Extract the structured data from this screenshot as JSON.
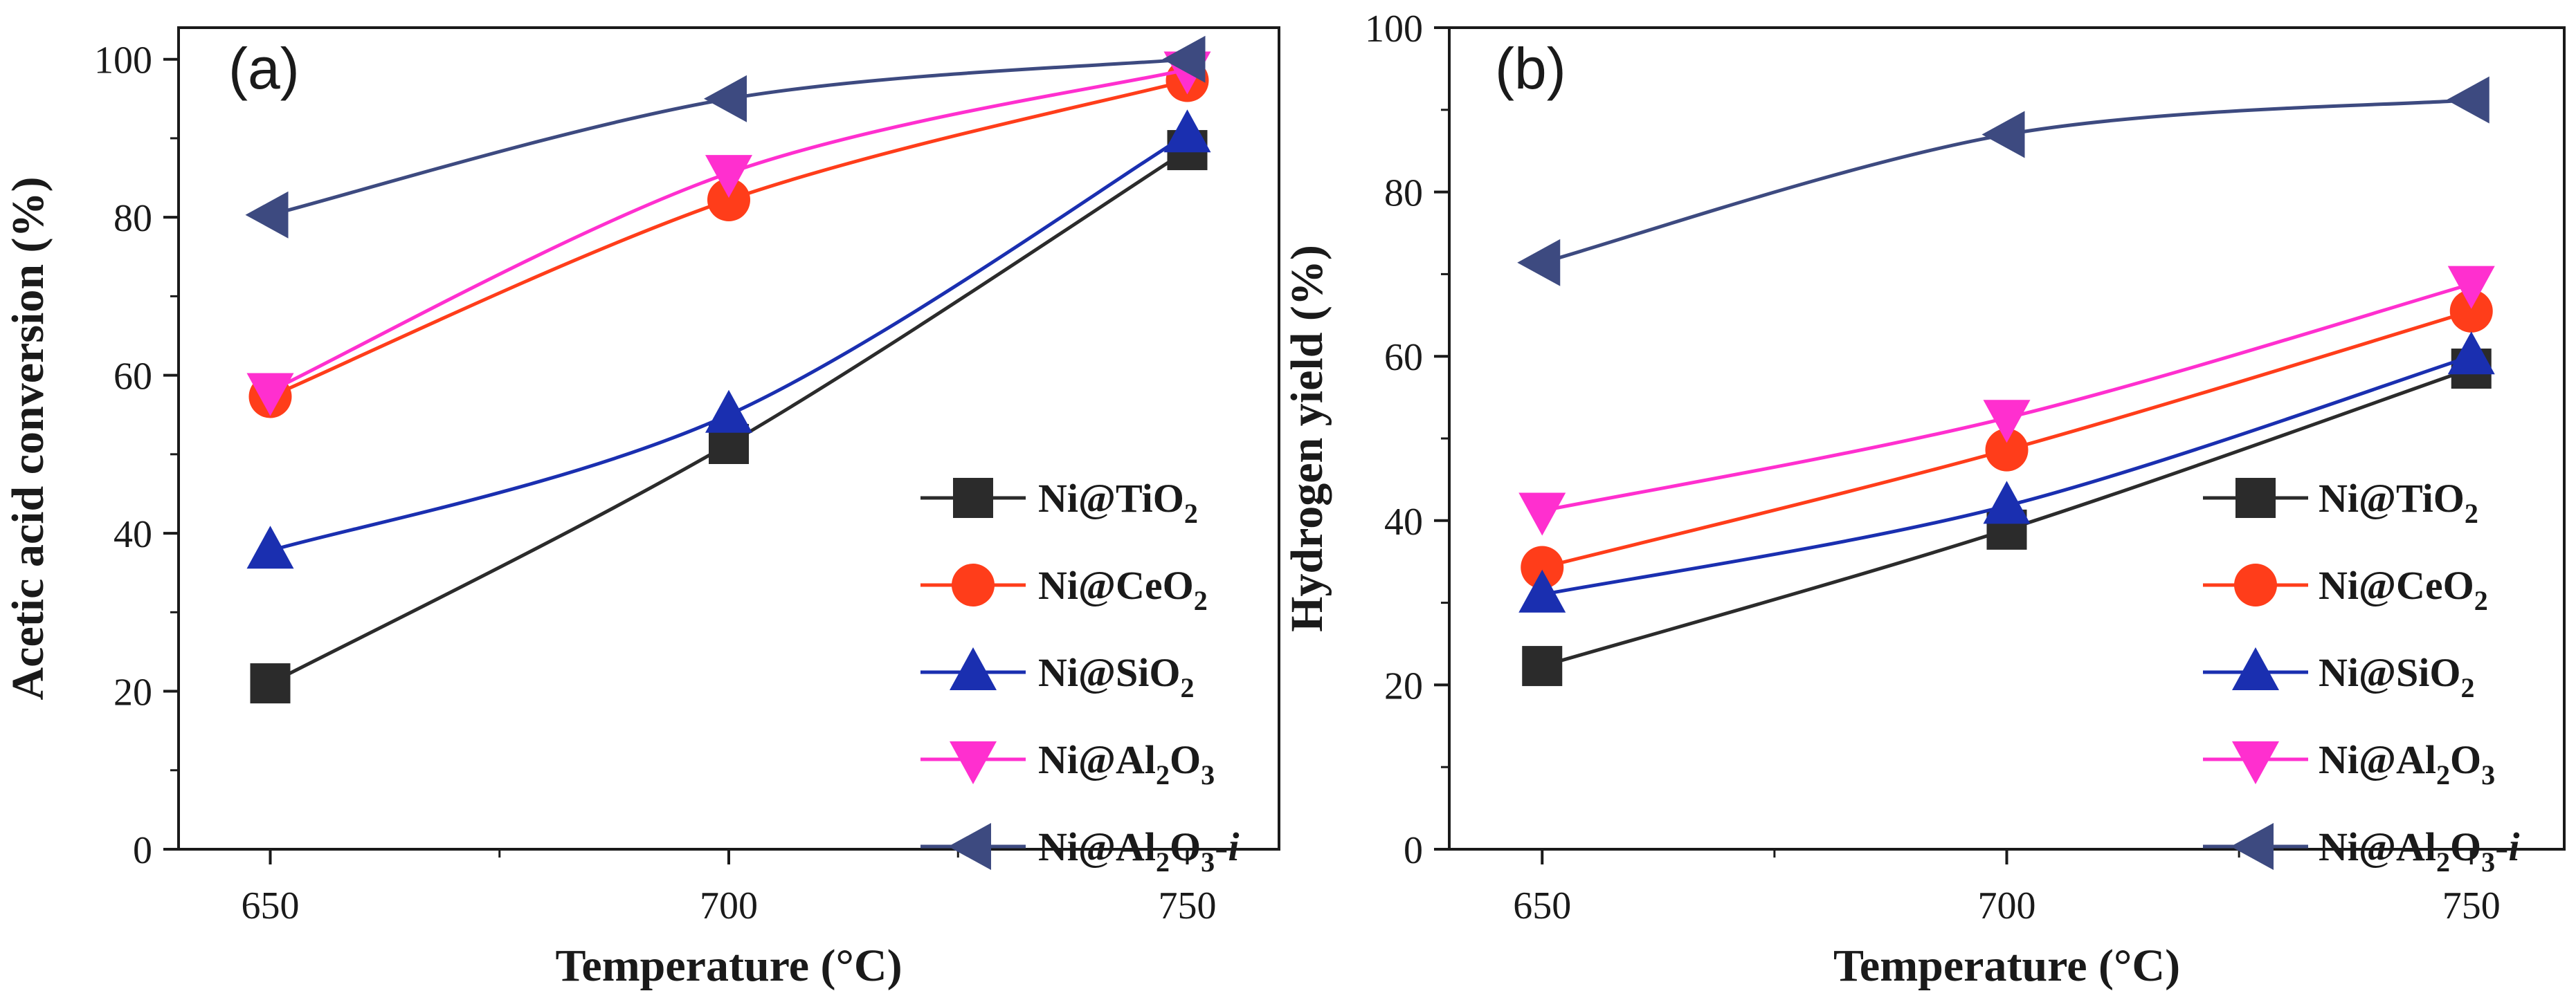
{
  "chart_data": [
    {
      "type": "line",
      "panel_label": "(a)",
      "xlabel": "Temperature (°C)",
      "ylabel": "Acetic acid conversion (%)",
      "x": [
        650,
        700,
        750
      ],
      "xlim": [
        640,
        760
      ],
      "ylim": [
        0,
        104
      ],
      "xticks": [
        650,
        700,
        750
      ],
      "yticks": [
        0,
        20,
        40,
        60,
        80,
        100
      ],
      "legend_position": "bottom-right",
      "series": [
        {
          "key": "ti",
          "name": "Ni@TiO2",
          "label_parts": [
            "Ni@TiO",
            "2",
            ""
          ],
          "italic_suffix": "",
          "color": "#2b2b2b",
          "marker": "square",
          "values": [
            21,
            51.3,
            88.5
          ]
        },
        {
          "key": "ce",
          "name": "Ni@CeO2",
          "label_parts": [
            "Ni@CeO",
            "2",
            ""
          ],
          "italic_suffix": "",
          "color": "#ff3d1a",
          "marker": "circle",
          "values": [
            57.3,
            82.2,
            97.3
          ]
        },
        {
          "key": "si",
          "name": "Ni@SiO2",
          "label_parts": [
            "Ni@SiO",
            "2",
            ""
          ],
          "italic_suffix": "",
          "color": "#1a2fb0",
          "marker": "triangle-up",
          "values": [
            37.8,
            55,
            90.5
          ]
        },
        {
          "key": "al",
          "name": "Ni@Al2O3",
          "label_parts": [
            "Ni@Al",
            "2",
            "O",
            "3",
            ""
          ],
          "italic_suffix": "",
          "color": "#ff2fcf",
          "marker": "triangle-down",
          "values": [
            58,
            85.6,
            98.7
          ]
        },
        {
          "key": "ali",
          "name": "Ni@Al2O3-i",
          "label_parts": [
            "Ni@Al",
            "2",
            "O",
            "3",
            "-"
          ],
          "italic_suffix": "i",
          "color": "#3d4a80",
          "marker": "triangle-left",
          "values": [
            80.3,
            95,
            100
          ]
        }
      ]
    },
    {
      "type": "line",
      "panel_label": "(b)",
      "xlabel": "Temperature (°C)",
      "ylabel": "Hydrogen yield (%)",
      "x": [
        650,
        700,
        750
      ],
      "xlim": [
        640,
        760
      ],
      "ylim": [
        0,
        100
      ],
      "xticks": [
        650,
        700,
        750
      ],
      "yticks": [
        0,
        20,
        40,
        60,
        80,
        100
      ],
      "legend_position": "bottom-right",
      "series": [
        {
          "key": "ti",
          "name": "Ni@TiO2",
          "label_parts": [
            "Ni@TiO",
            "2",
            ""
          ],
          "italic_suffix": "",
          "color": "#2b2b2b",
          "marker": "square",
          "values": [
            22.3,
            38.9,
            58.5
          ]
        },
        {
          "key": "ce",
          "name": "Ni@CeO2",
          "label_parts": [
            "Ni@CeO",
            "2",
            ""
          ],
          "italic_suffix": "",
          "color": "#ff3d1a",
          "marker": "circle",
          "values": [
            34.3,
            48.6,
            65.5
          ]
        },
        {
          "key": "si",
          "name": "Ni@SiO2",
          "label_parts": [
            "Ni@SiO",
            "2",
            ""
          ],
          "italic_suffix": "",
          "color": "#1a2fb0",
          "marker": "triangle-up",
          "values": [
            31,
            41.8,
            60
          ]
        },
        {
          "key": "al",
          "name": "Ni@Al2O3",
          "label_parts": [
            "Ni@Al",
            "2",
            "O",
            "3",
            ""
          ],
          "italic_suffix": "",
          "color": "#ff2fcf",
          "marker": "triangle-down",
          "values": [
            41.2,
            52.5,
            68.8
          ]
        },
        {
          "key": "ali",
          "name": "Ni@Al2O3-i",
          "label_parts": [
            "Ni@Al",
            "2",
            "O",
            "3",
            "-"
          ],
          "italic_suffix": "i",
          "color": "#3d4a80",
          "marker": "triangle-left",
          "values": [
            71.4,
            87,
            91.2
          ]
        }
      ]
    }
  ]
}
